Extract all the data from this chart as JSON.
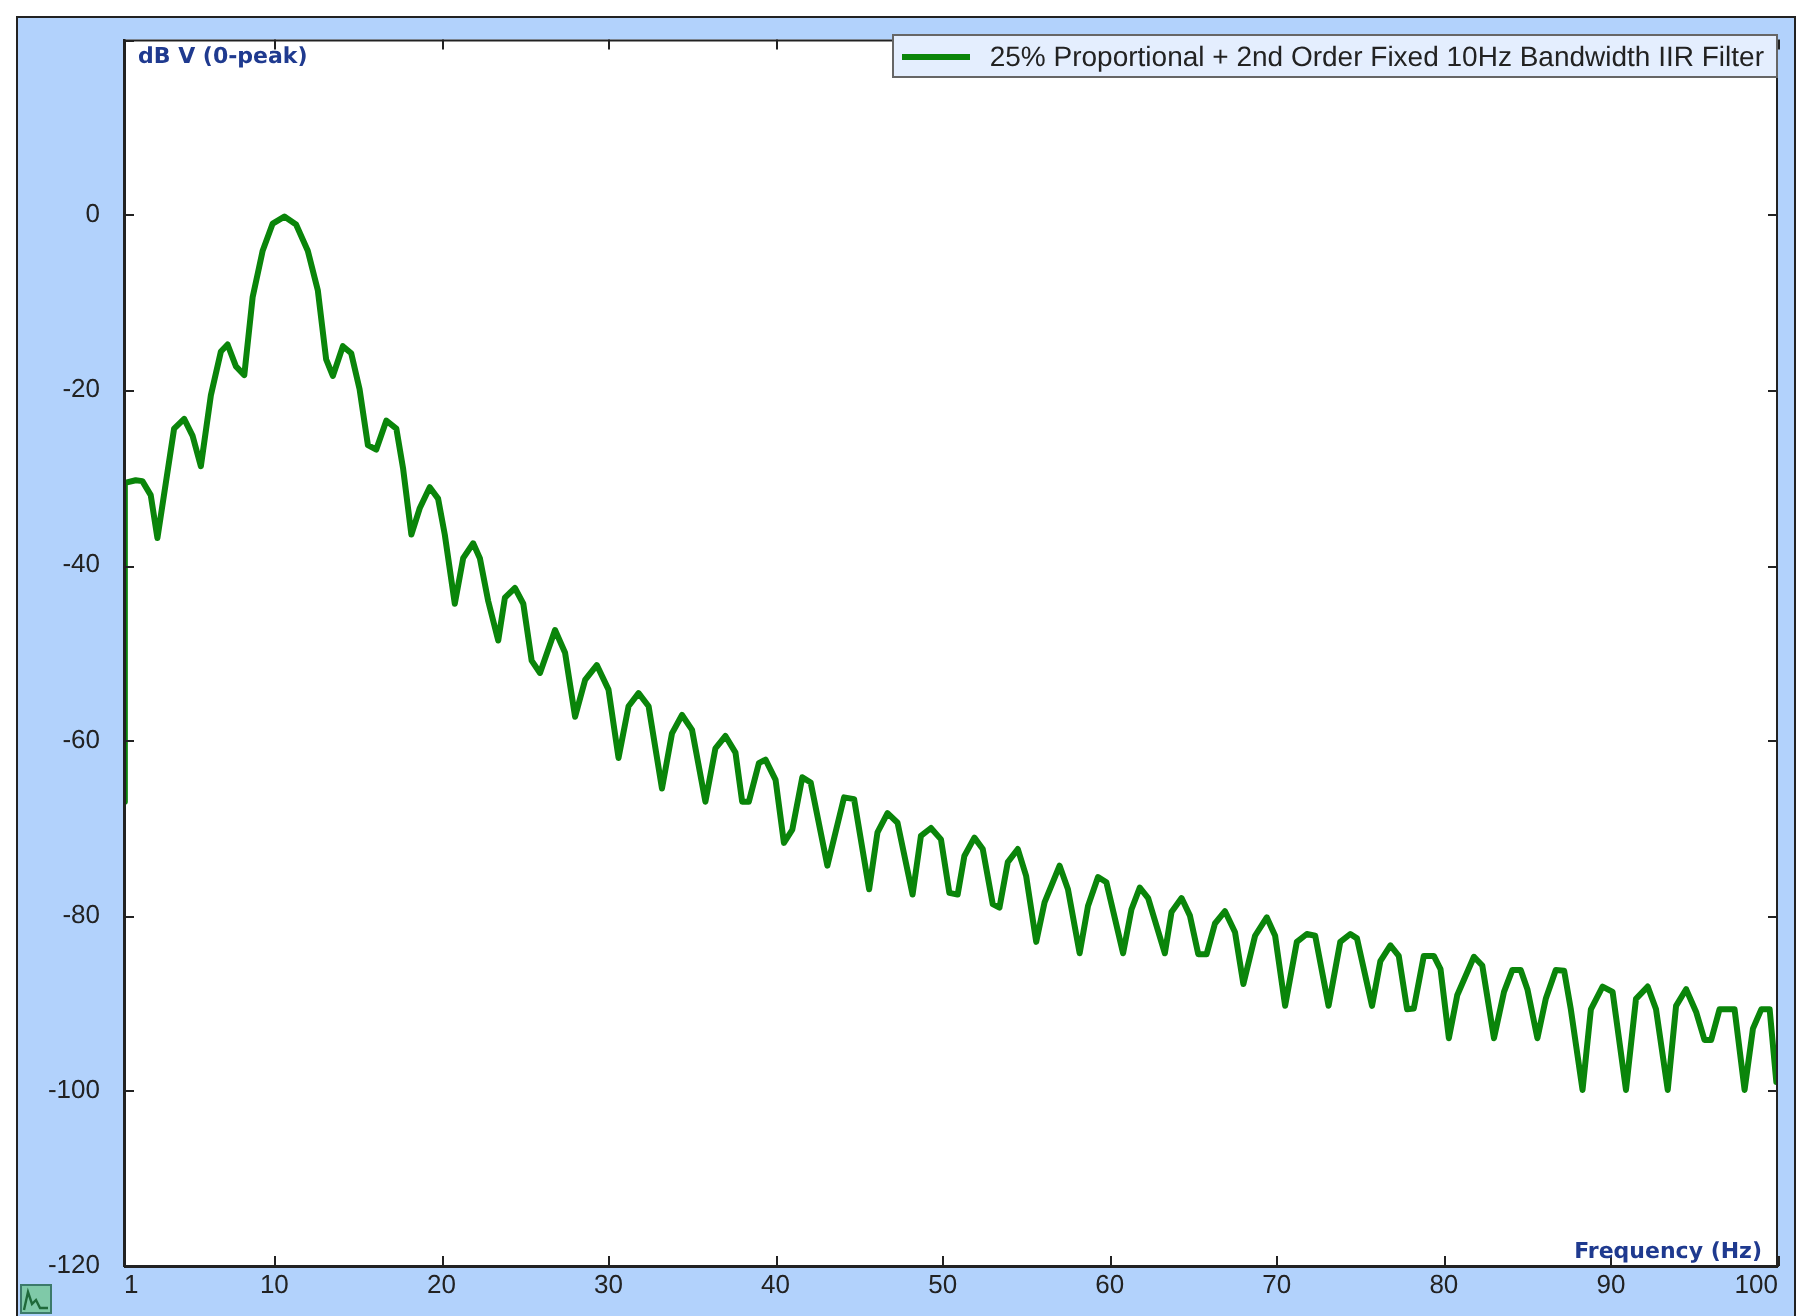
{
  "chart_data": {
    "type": "line",
    "xlabel": "Frequency (Hz)",
    "ylabel": "dB V (0-peak)",
    "legend": "top right",
    "marker": "none",
    "line_style": "solid",
    "xlim": [
      1,
      100
    ],
    "xticks": [
      1,
      10,
      20,
      30,
      40,
      50,
      60,
      70,
      80,
      90,
      100
    ],
    "ylim": [
      -120,
      20
    ],
    "yticks": [
      {
        "value": 20,
        "label": null
      },
      0,
      -20,
      -40,
      -60,
      -80,
      -100,
      -120
    ],
    "series": [
      {
        "name": "25% Proportional + 2nd Order Fixed 10Hz Bandwidth IIR Filter",
        "color": "#0a850a",
        "x": [
          1,
          1.05,
          1.7,
          2.1,
          2.6,
          3.0,
          4.0,
          4.6,
          5.1,
          5.6,
          6.2,
          6.8,
          7.2,
          7.7,
          8.2,
          8.7,
          9.3,
          9.9,
          10.6,
          11.3,
          12.0,
          12.6,
          13.1,
          13.5,
          14.1,
          14.6,
          15.1,
          15.6,
          16.1,
          16.7,
          17.3,
          17.7,
          18.2,
          18.7,
          19.3,
          19.8,
          20.2,
          20.8,
          21.3,
          21.9,
          22.3,
          22.8,
          23.4,
          23.8,
          24.4,
          24.9,
          25.4,
          25.9,
          26.8,
          27.4,
          28.0,
          28.6,
          29.3,
          30.0,
          30.6,
          31.2,
          31.8,
          32.4,
          33.2,
          33.8,
          34.4,
          35.0,
          35.8,
          36.4,
          37.0,
          37.6,
          38.0,
          38.4,
          39.0,
          39.4,
          40.0,
          40.5,
          41.0,
          41.6,
          42.1,
          43.1,
          44.1,
          44.7,
          45.6,
          46.1,
          46.7,
          47.3,
          48.2,
          48.7,
          49.3,
          49.9,
          50.4,
          50.9,
          51.3,
          51.9,
          52.4,
          53.0,
          53.4,
          53.9,
          54.5,
          55.0,
          55.6,
          56.1,
          57.0,
          57.5,
          58.2,
          58.7,
          59.3,
          59.8,
          60.8,
          61.3,
          61.8,
          62.3,
          63.3,
          63.7,
          64.3,
          64.8,
          65.3,
          65.8,
          66.3,
          66.9,
          67.5,
          68.0,
          68.7,
          69.4,
          69.9,
          70.5,
          71.2,
          71.8,
          72.3,
          73.1,
          73.8,
          74.4,
          74.8,
          75.7,
          76.2,
          76.8,
          77.3,
          77.8,
          78.2,
          78.8,
          79.4,
          79.8,
          80.3,
          80.8,
          81.8,
          82.3,
          83.0,
          83.6,
          84.1,
          84.6,
          85.0,
          85.6,
          86.1,
          86.7,
          87.2,
          87.6,
          88.3,
          88.8,
          89.5,
          90.1,
          90.9,
          91.5,
          92.2,
          92.7,
          93.4,
          93.9,
          94.5,
          95.1,
          95.6,
          96.0,
          96.5,
          97.4,
          98.0,
          98.5,
          99.0,
          99.5,
          99.9
        ],
        "values": [
          -67,
          -30.6,
          -30.3,
          -30.4,
          -32,
          -36.9,
          -24.4,
          -23.3,
          -25.2,
          -28.7,
          -20.6,
          -15.6,
          -14.8,
          -17.3,
          -18.3,
          -9.4,
          -4.1,
          -1,
          -0.2,
          -1.1,
          -4.1,
          -8.6,
          -16.5,
          -18.4,
          -15,
          -15.8,
          -19.9,
          -26.3,
          -26.8,
          -23.5,
          -24.4,
          -28.9,
          -36.5,
          -33.5,
          -31.1,
          -32.4,
          -36.5,
          -44.4,
          -39.2,
          -37.5,
          -39.2,
          -44.1,
          -48.6,
          -43.7,
          -42.6,
          -44.4,
          -50.9,
          -52.3,
          -47.4,
          -50,
          -57.3,
          -53.1,
          -51.4,
          -54.2,
          -62,
          -56.1,
          -54.6,
          -56.1,
          -65.5,
          -59.2,
          -57.1,
          -58.8,
          -67,
          -60.9,
          -59.5,
          -61.4,
          -67,
          -67,
          -62.6,
          -62.2,
          -64.5,
          -71.7,
          -70.2,
          -64.2,
          -64.8,
          -74.3,
          -66.5,
          -66.7,
          -77,
          -70.5,
          -68.3,
          -69.4,
          -77.6,
          -70.9,
          -70,
          -71.3,
          -77.4,
          -77.6,
          -73.2,
          -71.1,
          -72.4,
          -78.7,
          -79.1,
          -73.9,
          -72.4,
          -75.5,
          -83,
          -78.5,
          -74.3,
          -77,
          -84.3,
          -78.9,
          -75.6,
          -76.2,
          -84.3,
          -79.3,
          -76.8,
          -78,
          -84.3,
          -79.6,
          -78,
          -80,
          -84.4,
          -84.4,
          -80.9,
          -79.5,
          -81.9,
          -87.8,
          -82.3,
          -80.2,
          -82.3,
          -90.3,
          -83,
          -82.1,
          -82.3,
          -90.3,
          -83,
          -82.1,
          -82.6,
          -90.3,
          -85.2,
          -83.4,
          -84.6,
          -90.7,
          -90.6,
          -84.6,
          -84.6,
          -86.1,
          -94,
          -89.1,
          -84.7,
          -85.7,
          -94,
          -88.7,
          -86.2,
          -86.2,
          -88.4,
          -94,
          -89.5,
          -86.2,
          -86.3,
          -90.7,
          -99.9,
          -90.7,
          -88.1,
          -88.7,
          -99.9,
          -89.5,
          -88.1,
          -90.7,
          -99.9,
          -90.3,
          -88.4,
          -91,
          -94.2,
          -94.2,
          -90.7,
          -90.7,
          -99.9,
          -92.9,
          -90.7,
          -90.7,
          -99
        ]
      }
    ]
  }
}
